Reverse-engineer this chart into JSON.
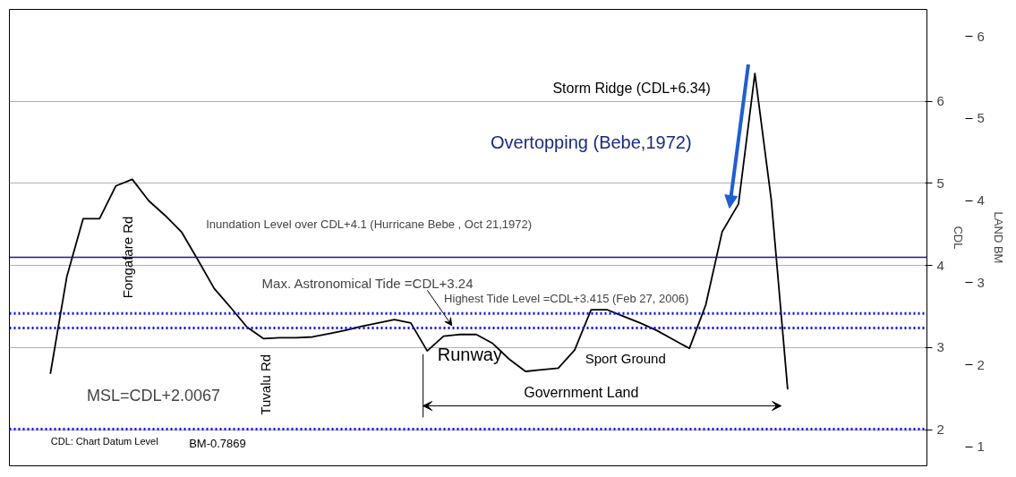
{
  "chart_data": {
    "type": "line",
    "ylabel": "CDL",
    "y2label": "LAND BM",
    "categories": [
      null,
      null,
      null,
      null,
      null,
      null,
      null,
      null,
      null,
      null,
      null,
      null,
      null,
      null,
      null,
      null,
      null,
      null,
      null,
      null,
      null,
      null,
      null,
      null,
      null,
      null,
      null,
      null,
      null,
      null,
      null,
      null,
      null,
      null,
      null,
      null,
      null,
      null,
      null,
      null,
      null,
      null,
      null,
      null,
      null,
      null,
      null,
      null,
      null,
      null,
      null,
      null,
      null,
      null,
      null,
      null
    ],
    "series": [
      {
        "color": "#000000",
        "values": [
          null,
          null,
          2.68,
          3.86,
          4.57,
          4.57,
          4.97,
          5.05,
          4.79,
          4.61,
          4.41,
          4.07,
          3.72,
          3.49,
          3.25,
          3.11,
          3.12,
          3.12,
          3.13,
          3.17,
          3.21,
          3.26,
          3.3,
          3.34,
          3.3,
          2.96,
          3.14,
          3.16,
          3.16,
          3.05,
          2.86,
          2.71,
          2.73,
          2.75,
          2.97,
          3.46,
          3.46,
          3.38,
          3.3,
          3.21,
          3.1,
          2.99,
          3.52,
          4.41,
          4.75,
          6.34,
          4.8,
          2.49,
          null,
          null,
          null,
          null,
          null,
          null,
          null,
          null
        ]
      }
    ],
    "ylim": [
      1.56,
      7.12
    ],
    "yticks": [
      2,
      3,
      4,
      5,
      6
    ],
    "y2lim": [
      0.77,
      6.33
    ],
    "y2ticks": [
      1,
      2,
      3,
      4,
      5,
      6
    ],
    "grid": "y",
    "marker": "none",
    "line_style": "solid",
    "ref_lines": [
      {
        "axis": "y",
        "value": 2.0067,
        "label": "MSL=CDL+2.0067",
        "color": "#1010ee",
        "line_style": "dotted"
      },
      {
        "axis": "y",
        "value": 4.1,
        "label": "Inundation Level   over CDL+4.1 (Hurricane Bebe , Oct 21,1972)",
        "color": "#1a1a8c",
        "line_style": "solid"
      },
      {
        "axis": "y",
        "value": 3.415,
        "label": "Highest Tide Level =CDL+3.415 (Feb 27, 2006)",
        "color": "#1010ee",
        "line_style": "dotted"
      },
      {
        "axis": "y",
        "value": 3.24,
        "label": "Max. Astronomical Tide  =CDL+3.24",
        "color": "#1010ee",
        "line_style": "dotted"
      }
    ],
    "annotations": [
      "Storm Ridge  (CDL+6.34)",
      "Overtopping (Bebe,1972)",
      "Fongafare Rd",
      "Tuvalu Rd",
      "Runway",
      "Sport Ground",
      "Government Land",
      "CDL: Chart Datum Level",
      "BM-0.7869"
    ]
  }
}
